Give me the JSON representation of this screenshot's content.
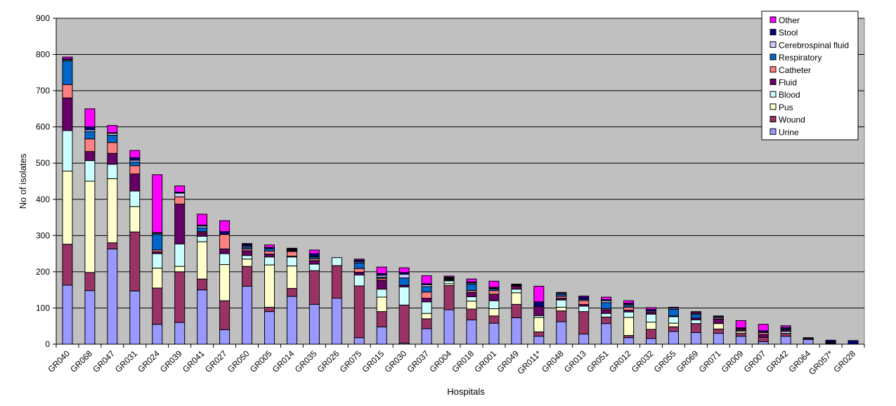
{
  "chart_data": {
    "type": "bar",
    "stacked": true,
    "xlabel": "Hospitals",
    "ylabel": "No of isolates",
    "ylim": [
      0,
      900
    ],
    "yticks": [
      0,
      100,
      200,
      300,
      400,
      500,
      600,
      700,
      800,
      900
    ],
    "grid": true,
    "legend_position": "top-right",
    "categories": [
      "GR040",
      "GR068",
      "GR047",
      "GR031",
      "GR024",
      "GR039",
      "GR041",
      "GR027",
      "GR050",
      "GR005",
      "GR014",
      "GR035",
      "GR026",
      "GR075",
      "GR015",
      "GR030",
      "GR037",
      "GR004",
      "GR018",
      "GR001",
      "GR049",
      "GR011*",
      "GR048",
      "GR013",
      "GR051",
      "GR012",
      "GR032",
      "GR055",
      "GR069",
      "GR071",
      "GR009",
      "GR007",
      "GR042",
      "GR064",
      "GR057*",
      "GR028"
    ],
    "series": [
      {
        "name": "Urine",
        "color": "#9999FF",
        "values": [
          163,
          148,
          263,
          147,
          55,
          60,
          150,
          40,
          160,
          90,
          132,
          110,
          127,
          18,
          48,
          3,
          43,
          95,
          67,
          58,
          73,
          22,
          62,
          28,
          57,
          18,
          16,
          35,
          32,
          30,
          22,
          7,
          22,
          13,
          2,
          0
        ]
      },
      {
        "name": "Wound",
        "color": "#993366",
        "values": [
          113,
          50,
          17,
          163,
          100,
          140,
          30,
          80,
          55,
          12,
          22,
          93,
          90,
          143,
          42,
          105,
          27,
          67,
          30,
          20,
          37,
          12,
          30,
          62,
          18,
          6,
          25,
          13,
          25,
          12,
          8,
          12,
          8,
          3,
          2,
          0
        ]
      },
      {
        "name": "Pus",
        "color": "#FFFFCC",
        "values": [
          202,
          252,
          177,
          70,
          55,
          15,
          103,
          100,
          20,
          117,
          62,
          0,
          0,
          0,
          40,
          0,
          15,
          5,
          22,
          20,
          32,
          40,
          10,
          0,
          0,
          50,
          20,
          10,
          0,
          15,
          5,
          0,
          0,
          0,
          0,
          0
        ]
      },
      {
        "name": "Blood",
        "color": "#CCFFFF",
        "values": [
          112,
          57,
          40,
          43,
          40,
          62,
          15,
          30,
          10,
          22,
          25,
          18,
          22,
          30,
          22,
          50,
          32,
          8,
          12,
          22,
          10,
          5,
          20,
          15,
          10,
          15,
          22,
          18,
          10,
          0,
          3,
          0,
          5,
          0,
          0,
          0
        ]
      },
      {
        "name": "Fluid",
        "color": "#660066",
        "values": [
          90,
          25,
          30,
          47,
          5,
          110,
          10,
          13,
          13,
          8,
          2,
          10,
          0,
          8,
          25,
          5,
          10,
          2,
          12,
          18,
          8,
          25,
          5,
          5,
          10,
          5,
          5,
          2,
          5,
          12,
          5,
          8,
          5,
          0,
          2,
          0
        ]
      },
      {
        "name": "Catheter",
        "color": "#FF8080",
        "values": [
          37,
          35,
          30,
          23,
          5,
          20,
          3,
          40,
          5,
          8,
          13,
          5,
          0,
          10,
          5,
          0,
          17,
          2,
          5,
          10,
          2,
          0,
          5,
          10,
          3,
          8,
          0,
          0,
          0,
          3,
          0,
          5,
          0,
          0,
          0,
          0
        ]
      },
      {
        "name": "Respiratory",
        "color": "#0066CC",
        "values": [
          65,
          20,
          20,
          10,
          43,
          0,
          10,
          0,
          5,
          7,
          2,
          5,
          0,
          15,
          3,
          20,
          15,
          2,
          18,
          5,
          0,
          0,
          5,
          0,
          17,
          5,
          0,
          18,
          10,
          0,
          0,
          0,
          3,
          0,
          0,
          0
        ]
      },
      {
        "name": "Cerebrospinal fluid",
        "color": "#CCCCFF",
        "values": [
          3,
          5,
          5,
          5,
          3,
          10,
          5,
          0,
          3,
          0,
          2,
          2,
          0,
          3,
          5,
          10,
          5,
          2,
          3,
          2,
          2,
          0,
          3,
          3,
          5,
          3,
          3,
          3,
          3,
          3,
          0,
          0,
          0,
          0,
          0,
          0
        ]
      },
      {
        "name": "Stool",
        "color": "#000080",
        "values": [
          3,
          8,
          2,
          7,
          2,
          3,
          3,
          8,
          5,
          3,
          3,
          7,
          0,
          5,
          5,
          5,
          3,
          2,
          3,
          2,
          2,
          13,
          3,
          7,
          3,
          3,
          5,
          3,
          2,
          3,
          2,
          5,
          3,
          2,
          5,
          10
        ]
      },
      {
        "name": "Other",
        "color": "#FF00FF",
        "values": [
          5,
          50,
          20,
          20,
          160,
          17,
          30,
          30,
          2,
          7,
          2,
          10,
          0,
          3,
          18,
          13,
          22,
          3,
          8,
          17,
          0,
          43,
          0,
          3,
          7,
          7,
          5,
          0,
          3,
          0,
          20,
          18,
          5,
          0,
          0,
          0
        ]
      }
    ]
  }
}
